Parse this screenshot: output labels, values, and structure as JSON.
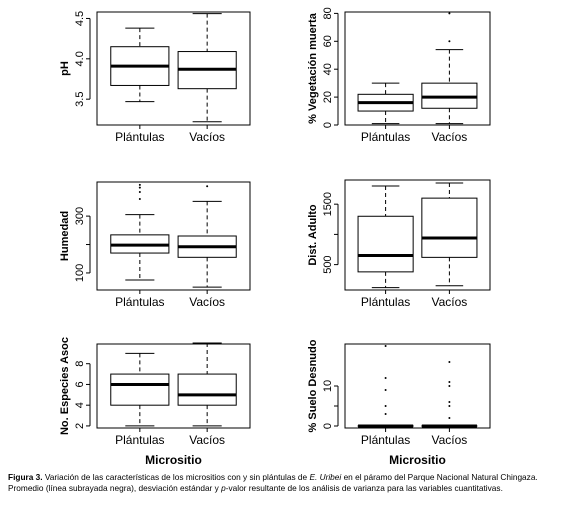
{
  "caption": {
    "label": "Figura 3.",
    "text_before": " Variación de las características de los micrositios con y sin plántulas de ",
    "species": "E. Uribei",
    "text_mid": " en el páramo del Parque Nacional Natural Chingaza. Promedio (línea subrayada negra), desviación estándar y ",
    "pvalue": "p",
    "text_after": "-valor resultante de los análisis de varianza para las variables cuantitativas."
  },
  "chart_data": [
    {
      "type": "box",
      "ylabel": "pH",
      "xlabel": "",
      "categories": [
        "Plántulas",
        "Vacíos"
      ],
      "yticks": [
        3.5,
        4.0,
        4.5
      ],
      "ytick_labels": [
        "3.5",
        "4.0",
        "4.5"
      ],
      "ylim": [
        3.18,
        4.58
      ],
      "boxes": [
        {
          "whisker_low": 3.47,
          "q1": 3.67,
          "median": 3.91,
          "q3": 4.15,
          "whisker_high": 4.38,
          "outliers": []
        },
        {
          "whisker_low": 3.22,
          "q1": 3.63,
          "median": 3.87,
          "q3": 4.09,
          "whisker_high": 4.56,
          "outliers": []
        }
      ]
    },
    {
      "type": "box",
      "ylabel": "% Vegetación muerta",
      "xlabel": "",
      "categories": [
        "Plántulas",
        "Vacíos"
      ],
      "yticks": [
        0,
        20,
        40,
        60,
        80
      ],
      "ytick_labels": [
        "0",
        "20",
        "40",
        "60",
        "80"
      ],
      "ylim": [
        0,
        81
      ],
      "boxes": [
        {
          "whisker_low": 1,
          "q1": 10,
          "median": 16,
          "q3": 22,
          "whisker_high": 30,
          "outliers": []
        },
        {
          "whisker_low": 1,
          "q1": 12,
          "median": 20,
          "q3": 30,
          "whisker_high": 54,
          "outliers": [
            60,
            80
          ]
        }
      ]
    },
    {
      "type": "box",
      "ylabel": "Humedad",
      "xlabel": "",
      "categories": [
        "Plántulas",
        "Vacíos"
      ],
      "yticks": [
        100,
        200,
        300
      ],
      "ytick_labels": [
        "100",
        "",
        "300"
      ],
      "ylim": [
        40,
        420
      ],
      "boxes": [
        {
          "whisker_low": 75,
          "q1": 170,
          "median": 198,
          "q3": 234,
          "whisker_high": 305,
          "outliers": [
            360,
            385,
            400,
            410
          ]
        },
        {
          "whisker_low": 50,
          "q1": 155,
          "median": 192,
          "q3": 230,
          "whisker_high": 352,
          "outliers": [
            405
          ]
        }
      ]
    },
    {
      "type": "box",
      "ylabel": "Dist. Adulto",
      "xlabel": "",
      "categories": [
        "Plántulas",
        "Vacíos"
      ],
      "yticks": [
        500,
        1000,
        1500
      ],
      "ytick_labels": [
        "500",
        "",
        "1500"
      ],
      "ylim": [
        80,
        1900
      ],
      "boxes": [
        {
          "whisker_low": 120,
          "q1": 380,
          "median": 650,
          "q3": 1300,
          "whisker_high": 1800,
          "outliers": []
        },
        {
          "whisker_low": 150,
          "q1": 620,
          "median": 940,
          "q3": 1600,
          "whisker_high": 1850,
          "outliers": []
        }
      ]
    },
    {
      "type": "box",
      "ylabel": "No. Especies Asoc",
      "xlabel": "Micrositio",
      "categories": [
        "Plántulas",
        "Vacíos"
      ],
      "yticks": [
        2,
        4,
        6,
        8
      ],
      "ytick_labels": [
        "2",
        "4",
        "6",
        "8"
      ],
      "ylim": [
        1.8,
        9.9
      ],
      "boxes": [
        {
          "whisker_low": 2,
          "q1": 4,
          "median": 6,
          "q3": 7,
          "whisker_high": 9,
          "outliers": []
        },
        {
          "whisker_low": 2,
          "q1": 4,
          "median": 5,
          "q3": 7,
          "whisker_high": 10,
          "outliers": []
        }
      ]
    },
    {
      "type": "box",
      "ylabel": "% Suelo Desnudo",
      "xlabel": "Micrositio",
      "categories": [
        "Plántulas",
        "Vacíos"
      ],
      "yticks": [
        0,
        5,
        10
      ],
      "ytick_labels": [
        "0",
        "",
        "10"
      ],
      "ylim": [
        -0.5,
        20.5
      ],
      "boxes": [
        {
          "whisker_low": 0,
          "q1": 0,
          "median": 0,
          "q3": 0,
          "whisker_high": 0,
          "outliers": [
            3,
            5,
            9,
            12,
            20
          ]
        },
        {
          "whisker_low": 0,
          "q1": 0,
          "median": 0,
          "q3": 0,
          "whisker_high": 0,
          "outliers": [
            2,
            5,
            6,
            10,
            11,
            16
          ]
        }
      ]
    }
  ]
}
